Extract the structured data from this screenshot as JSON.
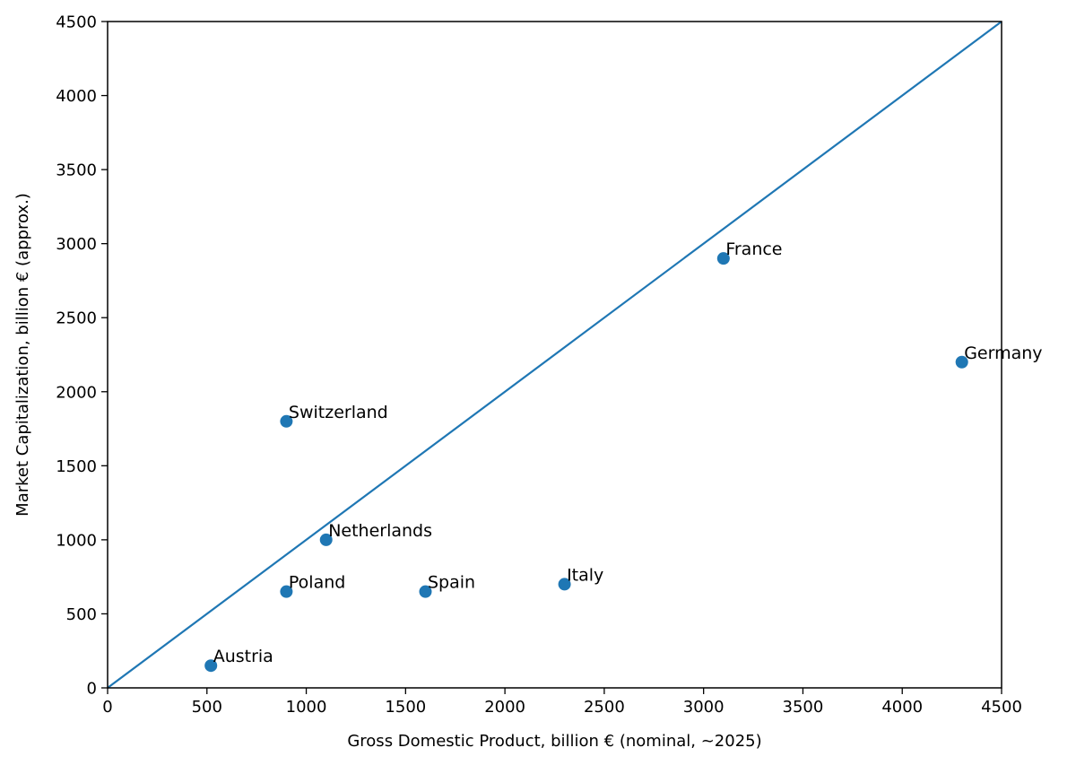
{
  "chart_data": {
    "type": "scatter",
    "title": "",
    "xlabel": "Gross Domestic Product, billion € (nominal, ~2025)",
    "ylabel": "Market Capitalization, billion € (approx.)",
    "xlim": [
      0,
      4500
    ],
    "ylim": [
      0,
      4500
    ],
    "xticks": [
      0,
      500,
      1000,
      1500,
      2000,
      2500,
      3000,
      3500,
      4000,
      4500
    ],
    "yticks": [
      0,
      500,
      1000,
      1500,
      2000,
      2500,
      3000,
      3500,
      4000,
      4500
    ],
    "grid": false,
    "legend": "none",
    "reference_line": {
      "from": [
        0,
        0
      ],
      "to": [
        4500,
        4500
      ]
    },
    "series": [
      {
        "color": "#1f77b4",
        "points": [
          {
            "label": "Austria",
            "x": 520,
            "y": 150
          },
          {
            "label": "Poland",
            "x": 900,
            "y": 650
          },
          {
            "label": "Switzerland",
            "x": 900,
            "y": 1800
          },
          {
            "label": "Netherlands",
            "x": 1100,
            "y": 1000
          },
          {
            "label": "Spain",
            "x": 1600,
            "y": 650
          },
          {
            "label": "Italy",
            "x": 2300,
            "y": 700
          },
          {
            "label": "France",
            "x": 3100,
            "y": 2900
          },
          {
            "label": "Germany",
            "x": 4300,
            "y": 2200
          }
        ]
      }
    ]
  }
}
